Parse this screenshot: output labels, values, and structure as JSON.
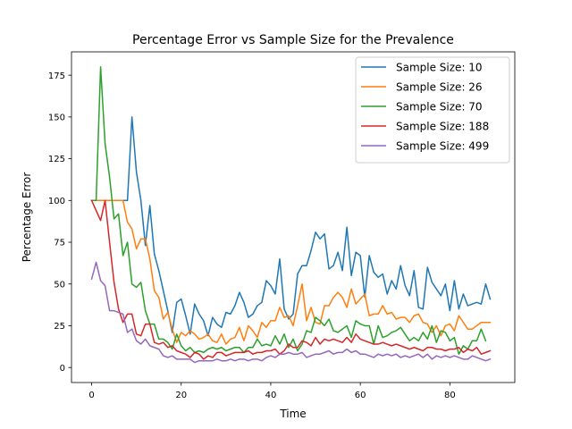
{
  "chart_data": {
    "type": "line",
    "title": "Percentage Error vs Sample Size for the Prevalence",
    "xlabel": "Time",
    "ylabel": "Percentage Error",
    "xlim": [
      -4.5,
      94.5
    ],
    "ylim": [
      -9.0,
      189.0
    ],
    "xticks": [
      0,
      20,
      40,
      60,
      80
    ],
    "yticks": [
      0,
      25,
      50,
      75,
      100,
      125,
      150,
      175
    ],
    "grid": false,
    "legend_position": "top-right",
    "series": [
      {
        "name": "Sample Size: 10",
        "color": "#1f77b4",
        "values": [
          100,
          100,
          100,
          100,
          100,
          100,
          100,
          100,
          100,
          150,
          117,
          100,
          73,
          97,
          68,
          58,
          46,
          34,
          21,
          39,
          41,
          31,
          20,
          38,
          32,
          28,
          19,
          30,
          26,
          24,
          33,
          32,
          37,
          45,
          39,
          30,
          32,
          37,
          39,
          52,
          49,
          44,
          65,
          35,
          29,
          32,
          56,
          61,
          61,
          70,
          81,
          77,
          80,
          59,
          61,
          69,
          58,
          84,
          55,
          69,
          67,
          42,
          67,
          57,
          54,
          56,
          44,
          52,
          47,
          61,
          49,
          43,
          58,
          36,
          35,
          60,
          51,
          47,
          43,
          50,
          34,
          52,
          35,
          44,
          37,
          38,
          39,
          38,
          50,
          41
        ]
      },
      {
        "name": "Sample Size: 26",
        "color": "#ff7f0e",
        "values": [
          100,
          100,
          100,
          100,
          100,
          100,
          100,
          100,
          87,
          83,
          71,
          77,
          77,
          65,
          46,
          42,
          29,
          33,
          23,
          15,
          21,
          19,
          22,
          20,
          17,
          18,
          20,
          16,
          15,
          20,
          14,
          17,
          18,
          24,
          16,
          25,
          22,
          18,
          27,
          24,
          28,
          28,
          36,
          30,
          31,
          25,
          37,
          50,
          28,
          36,
          27,
          26,
          37,
          37,
          42,
          45,
          42,
          36,
          47,
          38,
          41,
          44,
          31,
          32,
          32,
          37,
          32,
          33,
          29,
          30,
          30,
          27,
          31,
          32,
          27,
          26,
          21,
          25,
          19,
          25,
          26,
          22,
          31,
          27,
          23,
          23,
          25,
          27,
          27,
          27
        ]
      },
      {
        "name": "Sample Size: 70",
        "color": "#2ca02c",
        "values": [
          100,
          100,
          180,
          134,
          114,
          89,
          92,
          67,
          75,
          50,
          48,
          51,
          34,
          26,
          26,
          17,
          17,
          15,
          11,
          20,
          13,
          10,
          12,
          9,
          10,
          9,
          11,
          12,
          11,
          12,
          10,
          11,
          12,
          12,
          9,
          12,
          12,
          17,
          13,
          14,
          13,
          19,
          14,
          20,
          12,
          17,
          10,
          14,
          22,
          21,
          30,
          28,
          25,
          29,
          22,
          21,
          23,
          25,
          18,
          28,
          26,
          25,
          25,
          14,
          25,
          18,
          19,
          21,
          22,
          24,
          20,
          16,
          18,
          16,
          21,
          17,
          25,
          15,
          22,
          21,
          16,
          18,
          8,
          13,
          11,
          16,
          16,
          23,
          16
        ]
      },
      {
        "name": "Sample Size: 188",
        "color": "#d62728",
        "values": [
          100,
          94,
          88,
          100,
          75,
          51,
          35,
          27,
          32,
          32,
          20,
          19,
          26,
          26,
          15,
          14,
          15,
          12,
          13,
          10,
          9,
          8,
          6,
          9,
          8,
          5,
          7,
          6,
          9,
          9,
          7,
          8,
          9,
          9,
          9,
          10,
          8,
          9,
          9,
          10,
          10,
          11,
          8,
          10,
          14,
          12,
          12,
          16,
          15,
          13,
          18,
          14,
          17,
          16,
          17,
          16,
          15,
          18,
          15,
          20,
          17,
          16,
          15,
          14,
          14,
          15,
          14,
          13,
          14,
          13,
          12,
          11,
          12,
          11,
          10,
          12,
          12,
          11,
          11,
          10,
          11,
          11,
          12,
          9,
          11,
          10,
          12,
          8,
          9,
          10
        ]
      },
      {
        "name": "Sample Size: 499",
        "color": "#9467bd",
        "values": [
          53,
          63,
          52,
          49,
          34,
          34,
          33,
          32,
          21,
          23,
          16,
          14,
          17,
          13,
          12,
          11,
          7,
          6,
          7,
          5,
          5,
          5,
          5,
          3,
          4,
          4,
          4,
          4,
          5,
          4,
          4,
          5,
          4,
          5,
          5,
          4,
          5,
          5,
          4,
          6,
          7,
          6,
          8,
          8,
          9,
          8,
          8,
          9,
          6,
          7,
          8,
          8,
          9,
          10,
          8,
          9,
          9,
          11,
          9,
          10,
          8,
          8,
          7,
          6,
          8,
          7,
          8,
          7,
          8,
          6,
          7,
          6,
          7,
          8,
          6,
          8,
          5,
          7,
          6,
          7,
          6,
          7,
          6,
          5,
          5,
          7,
          6,
          5,
          4,
          5
        ]
      }
    ]
  }
}
